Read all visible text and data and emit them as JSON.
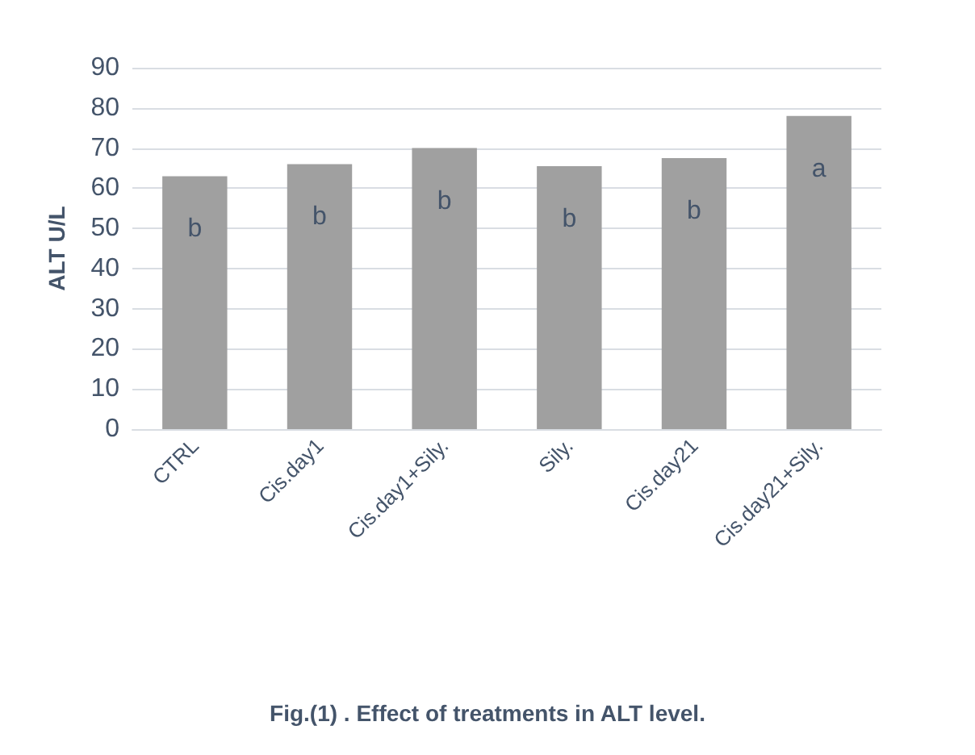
{
  "chart_data": {
    "type": "bar",
    "ylabel": "ALT U/L",
    "categories": [
      "CTRL",
      "Cis.day1",
      "Cis.day1+Sily.",
      "Sily.",
      "Cis.day21",
      "Cis.day21+Sily."
    ],
    "values": [
      63,
      66,
      70,
      65.5,
      67.5,
      78
    ],
    "value_labels": [
      "b",
      "b",
      "b",
      "b",
      "b",
      "a"
    ],
    "color": "#a0a0a0",
    "ylim": [
      0,
      90
    ],
    "yticks": [
      0,
      10,
      20,
      30,
      40,
      50,
      60,
      70,
      80,
      90
    ],
    "grid": "y",
    "annotations": [
      "Fig.(1) . Effect of treatments in ALT level."
    ]
  }
}
